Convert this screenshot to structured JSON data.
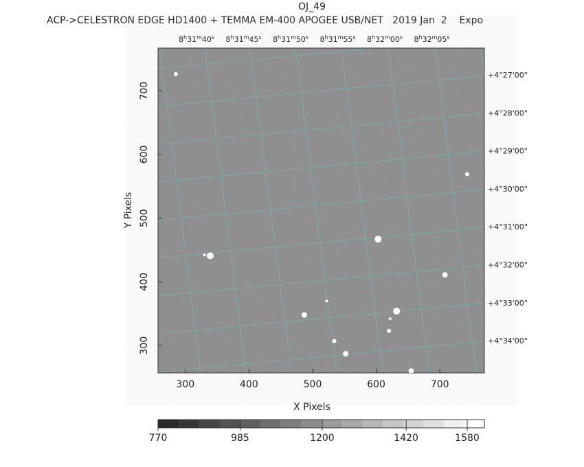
{
  "chart_data": {
    "type": "image",
    "title": "OJ_49",
    "subtitle": "ACP->CELESTRON EDGE HD1400 + TEMMA EM-400 APOGEE USB/NET   2019 Jan  2    Expo",
    "xlabel": "X Pixels",
    "ylabel": "Y Pixels",
    "xlim": [
      257,
      770
    ],
    "ylim": [
      257,
      767
    ],
    "xticks": [
      300,
      400,
      500,
      600,
      700
    ],
    "yticks": [
      300,
      400,
      500,
      600,
      700
    ],
    "ra_labels": [
      "8h31m40s",
      "8h31m45s",
      "8h31m50s",
      "8h31m55s",
      "8h32m00s",
      "8h32m05s"
    ],
    "dec_labels": [
      "+4°27'00\"",
      "+4°28'00\"",
      "+4°29'00\"",
      "+4°30'00\"",
      "+4°31'00\"",
      "+4°32'00\"",
      "+4°33'00\"",
      "+4°34'00\""
    ],
    "stars": {
      "x": [
        285,
        339,
        330,
        603,
        708,
        487,
        632,
        552,
        534,
        655,
        743,
        522,
        620,
        622
      ],
      "y": [
        726,
        441,
        442,
        467,
        411,
        348,
        354,
        287,
        307,
        260,
        569,
        370,
        323,
        342
      ],
      "sizes": [
        3,
        5,
        2,
        5,
        4,
        4,
        5,
        4,
        3,
        4,
        3,
        2,
        3,
        2
      ],
      "color": "#ffffff"
    },
    "colorbar": {
      "lim": [
        770,
        1625
      ],
      "ticks": [
        770,
        985,
        1200,
        1420,
        1580
      ]
    }
  }
}
